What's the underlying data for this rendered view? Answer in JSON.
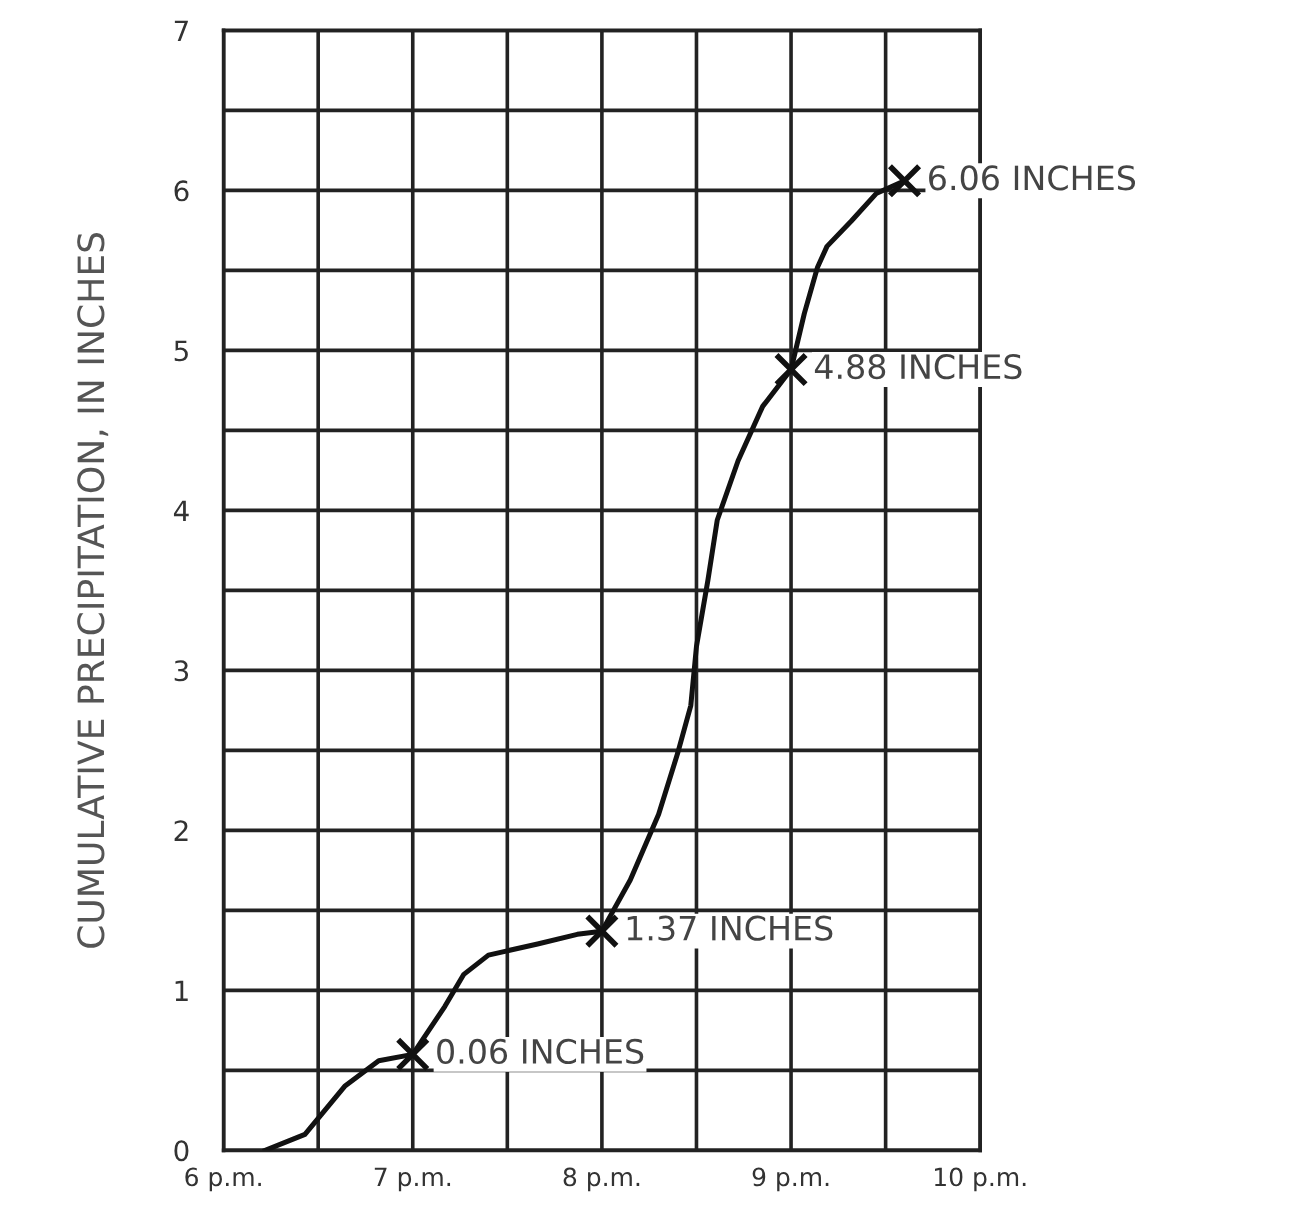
{
  "chart_data": {
    "type": "line",
    "ylabel": "CUMULATIVE PRECIPITATION, IN INCHES",
    "xlim": [
      6,
      10
    ],
    "ylim": [
      0,
      7
    ],
    "xticks": [
      {
        "value": 6,
        "label": "6 p.m."
      },
      {
        "value": 6.5,
        "label": null
      },
      {
        "value": 7,
        "label": "7 p.m."
      },
      {
        "value": 7.5,
        "label": null
      },
      {
        "value": 8,
        "label": "8 p.m."
      },
      {
        "value": 8.5,
        "label": null
      },
      {
        "value": 9,
        "label": "9 p.m."
      },
      {
        "value": 9.5,
        "label": null
      },
      {
        "value": 10,
        "label": "10 p.m."
      }
    ],
    "yticks": [
      0,
      {
        "value": 0.5,
        "label": null
      },
      1,
      {
        "value": 1.5,
        "label": null
      },
      2,
      {
        "value": 2.5,
        "label": null
      },
      3,
      {
        "value": 3.5,
        "label": null
      },
      4,
      {
        "value": 4.5,
        "label": null
      },
      5,
      {
        "value": 5.5,
        "label": null
      },
      6,
      {
        "value": 6.5,
        "label": null
      },
      7
    ],
    "grid": true,
    "series": [
      {
        "color": "#111111",
        "marker": "none",
        "x": [
          6.22,
          6.43,
          6.64,
          6.82,
          7.0,
          7.17,
          7.27,
          7.4,
          7.66,
          7.87,
          8.0,
          8.15,
          8.3,
          8.4,
          8.47,
          8.5,
          8.56,
          8.61,
          8.72,
          8.85,
          9.0,
          9.07,
          9.14,
          9.19,
          9.32,
          9.45,
          9.6
        ],
        "values": [
          0,
          0.1,
          0.4,
          0.56,
          0.6,
          0.9,
          1.1,
          1.22,
          1.29,
          1.35,
          1.37,
          1.69,
          2.1,
          2.48,
          2.78,
          3.15,
          3.56,
          3.94,
          4.31,
          4.65,
          4.88,
          5.23,
          5.52,
          5.65,
          5.81,
          5.98,
          6.06
        ]
      },
      {
        "type": "scatter",
        "color": "#111111",
        "marker": "cross",
        "x": [
          7,
          8,
          9,
          9.6
        ],
        "values": [
          0.6,
          1.37,
          4.88,
          6.06
        ]
      }
    ],
    "annotations": [
      {
        "text": "0.06 INCHES",
        "x": 7,
        "y": 0.6
      },
      {
        "text": "1.37 INCHES",
        "x": 8,
        "y": 1.37
      },
      {
        "text": "4.88 INCHES",
        "x": 9,
        "y": 4.88
      },
      {
        "text": "6.06 INCHES",
        "x": 9.6,
        "y": 6.06
      }
    ]
  }
}
